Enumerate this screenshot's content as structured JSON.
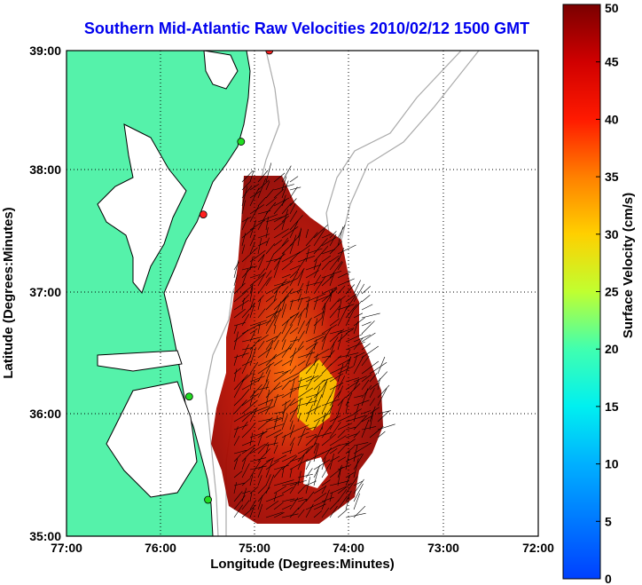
{
  "title": "Southern Mid-Atlantic Raw Velocities 2010/02/12 1500 GMT",
  "map": {
    "xlabel": "Longitude (Degrees:Minutes)",
    "ylabel": "Latitude (Degrees:Minutes)",
    "lon_ticks": [
      "77:00",
      "76:00",
      "75:00",
      "74:00",
      "73:00",
      "72:00"
    ],
    "lat_ticks": [
      "39:00",
      "38:00",
      "37:00",
      "36:00",
      "35:00"
    ],
    "xlim": [
      -77,
      -72
    ],
    "ylim": [
      35,
      39
    ],
    "land_color": "#55f2aa",
    "grid": "dotted"
  },
  "colorbar": {
    "label": "Surface Velocity (cm/s)",
    "min": 0,
    "max": 50,
    "ticks": [
      "0",
      "5",
      "10",
      "15",
      "20",
      "25",
      "30",
      "35",
      "40",
      "45",
      "50"
    ]
  },
  "stations": [
    {
      "lon": -74.85,
      "lat": 39.0,
      "color": "#ff2020"
    },
    {
      "lon": -75.15,
      "lat": 38.25,
      "color": "#22dd22"
    },
    {
      "lon": -75.55,
      "lat": 37.65,
      "color": "#ff2020"
    },
    {
      "lon": -75.7,
      "lat": 36.15,
      "color": "#22dd22"
    },
    {
      "lon": -75.5,
      "lat": 35.3,
      "color": "#22dd22"
    }
  ]
}
